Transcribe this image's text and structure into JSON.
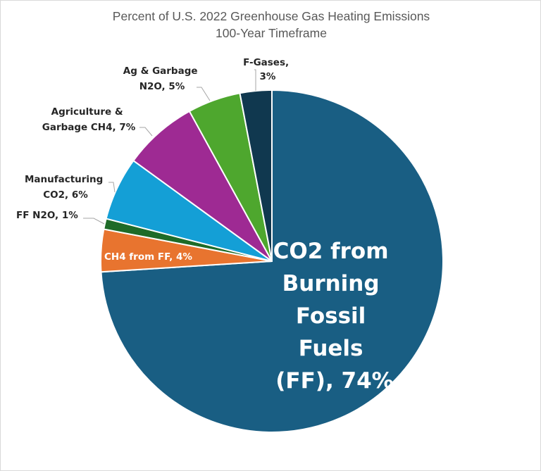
{
  "chart_data": {
    "type": "pie",
    "title": [
      "Percent of U.S. 2022 Greenhouse Gas Heating Emissions",
      "100-Year Timeframe"
    ],
    "start": "top",
    "direction": "clockwise",
    "slices": [
      {
        "name": "CO2 from Burning Fossil Fuels (FF)",
        "value": 74,
        "color": "#195e83",
        "label_lines": [
          "CO2 from",
          "Burning",
          "Fossil",
          "Fuels",
          "(FF), 74%"
        ]
      },
      {
        "name": "CH4 from FF",
        "value": 4,
        "color": "#e8742f",
        "label_lines": [
          "CH4 from FF, 4%"
        ]
      },
      {
        "name": "FF N2O",
        "value": 1,
        "color": "#1e6b28",
        "label_lines": [
          "FF N2O, 1%"
        ]
      },
      {
        "name": "Manufacturing CO2",
        "value": 6,
        "color": "#149fd6",
        "label_lines": [
          "Manufacturing",
          "CO2, 6%"
        ]
      },
      {
        "name": "Agriculture & Garbage CH4",
        "value": 7,
        "color": "#9e2a93",
        "label_lines": [
          "Agriculture &",
          "Garbage CH4, 7%"
        ]
      },
      {
        "name": "Ag & Garbage N2O",
        "value": 5,
        "color": "#4ea72e",
        "label_lines": [
          "Ag & Garbage",
          "N2O, 5%"
        ]
      },
      {
        "name": "F-Gases",
        "value": 3,
        "color": "#10384f",
        "label_lines": [
          "F-Gases,",
          "3%"
        ]
      }
    ],
    "legend": "none"
  }
}
